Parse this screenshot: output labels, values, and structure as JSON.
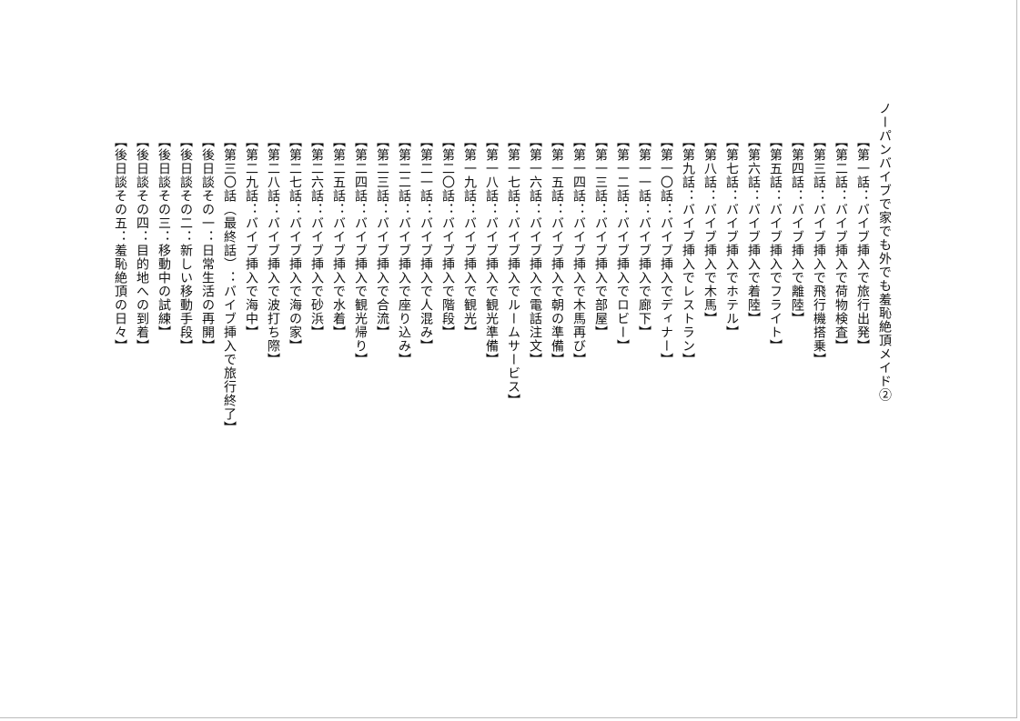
{
  "title": "ノーパンバイブで家でも外でも羞恥絶頂メイド②",
  "items": [
    "【第一話：バイブ挿入で旅行出発】",
    "【第二話：バイブ挿入で荷物検査】",
    "【第三話：バイブ挿入で飛行機搭乗】",
    "【第四話：バイブ挿入で離陸】",
    "【第五話：バイブ挿入でフライト】",
    "【第六話：バイブ挿入で着陸】",
    "【第七話：バイブ挿入でホテル】",
    "【第八話：バイブ挿入で木馬】",
    "【第九話：バイブ挿入でレストラン】",
    "【第一〇話：バイブ挿入でディナー】",
    "【第一一話：バイブ挿入で廊下】",
    "【第一二話：バイブ挿入でロビー】",
    "【第一三話：バイブ挿入で部屋】",
    "【第一四話：バイブ挿入で木馬再び】",
    "【第一五話：バイブ挿入で朝の準備】",
    "【第一六話：バイブ挿入で電話注文】",
    "【第一七話：バイブ挿入でルームサービス】",
    "【第一八話：バイブ挿入で観光準備】",
    "【第一九話：バイブ挿入で観光】",
    "【第二〇話：バイブ挿入で階段】",
    "【第二一話：バイブ挿入で人混み】",
    "【第二二話：バイブ挿入で座り込み】",
    "【第二三話：バイブ挿入で合流】",
    "【第二四話：バイブ挿入で観光帰り】",
    "【第二五話：バイブ挿入で水着】",
    "【第二六話：バイブ挿入で砂浜】",
    "【第二七話：バイブ挿入で海の家】",
    "【第二八話：バイブ挿入で波打ち際】",
    "【第二九話：バイブ挿入で海中】",
    "【第三〇話（最終話）：バイブ挿入で旅行終了】",
    "【後日談その一：日常生活の再開】",
    "【後日談その二：新しい移動手段】",
    "【後日談その三：移動中の試練】",
    "【後日談その四：目的地への到着】",
    "【後日談その五：羞恥絶頂の日々】"
  ]
}
